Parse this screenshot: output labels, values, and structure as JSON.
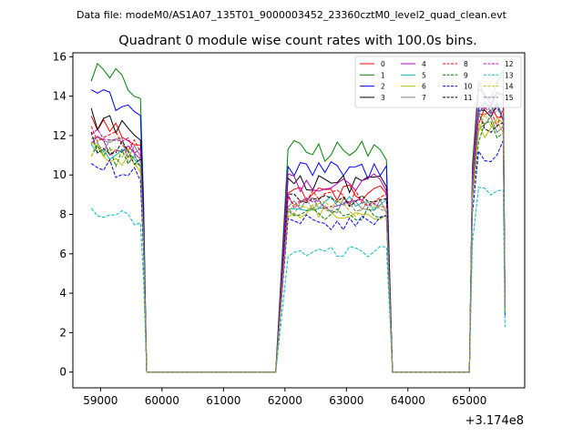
{
  "header": {
    "datafile": "Data file: modeM0/AS1A07_135T01_9000003452_23360cztM0_level2_quad_clean.evt"
  },
  "chart_data": {
    "type": "line",
    "title": "Quadrant 0 module wise count rates with 100.0s bins.",
    "xlabel": "",
    "ylabel": "",
    "x_offset_label": "+3.174e8",
    "xlim": [
      58550,
      65900
    ],
    "ylim": [
      -0.8,
      16.2
    ],
    "x_ticks": [
      59000,
      60000,
      61000,
      62000,
      63000,
      64000,
      65000
    ],
    "x_tick_labels": [
      "59000",
      "60000",
      "61000",
      "62000",
      "63000",
      "64000",
      "65000"
    ],
    "y_ticks": [
      0,
      2,
      4,
      6,
      8,
      10,
      12,
      14,
      16
    ],
    "y_tick_labels": [
      "0",
      "2",
      "4",
      "6",
      "8",
      "10",
      "12",
      "14",
      "16"
    ],
    "grid": false,
    "legend_position": "top-right",
    "segments": [
      {
        "x_start": 58850,
        "x_end": 59650
      },
      {
        "x_start": 62050,
        "x_end": 63650
      },
      {
        "x_start": 65050,
        "x_end": 65550
      }
    ],
    "gap_ranges": [
      {
        "x_start": 59750,
        "x_end": 61850
      },
      {
        "x_start": 63850,
        "x_end": 64950
      }
    ],
    "series": [
      {
        "name": "0",
        "color": "#ff0000",
        "dash": "solid",
        "levels": [
          11.8,
          9.1,
          13.0
        ]
      },
      {
        "name": "1",
        "color": "#008000",
        "dash": "solid",
        "levels": [
          14.2,
          11.2,
          14.6
        ]
      },
      {
        "name": "2",
        "color": "#0000ff",
        "dash": "solid",
        "levels": [
          13.3,
          10.2,
          14.0
        ]
      },
      {
        "name": "3",
        "color": "#000000",
        "dash": "solid",
        "levels": [
          12.0,
          9.5,
          13.3
        ]
      },
      {
        "name": "4",
        "color": "#bf00bf",
        "dash": "solid",
        "levels": [
          11.0,
          9.6,
          13.8
        ]
      },
      {
        "name": "5",
        "color": "#00bfbf",
        "dash": "solid",
        "levels": [
          10.6,
          8.6,
          13.2
        ]
      },
      {
        "name": "6",
        "color": "#bfbf00",
        "dash": "solid",
        "levels": [
          10.3,
          8.1,
          12.3
        ]
      },
      {
        "name": "7",
        "color": "#808080",
        "dash": "solid",
        "levels": [
          11.1,
          8.5,
          12.7
        ]
      },
      {
        "name": "8",
        "color": "#ff0000",
        "dash": "dashed",
        "levels": [
          11.3,
          8.9,
          12.9
        ]
      },
      {
        "name": "9",
        "color": "#008000",
        "dash": "dashed",
        "levels": [
          10.5,
          8.1,
          12.2
        ]
      },
      {
        "name": "10",
        "color": "#0000ff",
        "dash": "dashed",
        "levels": [
          9.8,
          7.6,
          11.2
        ]
      },
      {
        "name": "11",
        "color": "#000000",
        "dash": "dashed",
        "levels": [
          10.9,
          8.7,
          12.6
        ]
      },
      {
        "name": "12",
        "color": "#bf00bf",
        "dash": "dashed",
        "levels": [
          11.4,
          8.6,
          13.4
        ]
      },
      {
        "name": "13",
        "color": "#00bfbf",
        "dash": "dashed",
        "levels": [
          7.6,
          6.1,
          9.1
        ]
      },
      {
        "name": "14",
        "color": "#bfbf00",
        "dash": "dashed",
        "levels": [
          10.6,
          8.3,
          12.5
        ]
      },
      {
        "name": "15",
        "color": "#808080",
        "dash": "dashed",
        "levels": [
          10.9,
          8.4,
          12.9
        ]
      }
    ]
  }
}
